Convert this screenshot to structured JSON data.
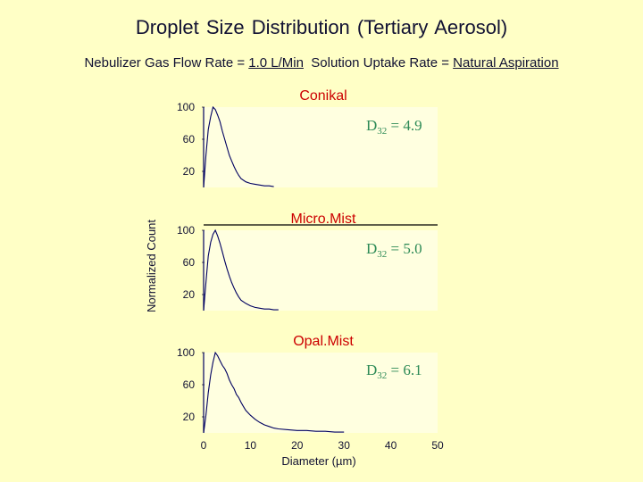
{
  "title": "Droplet  Size Distribution (Tertiary Aerosol)",
  "subtitle": {
    "flow_label": "Nebulizer Gas Flow Rate = ",
    "flow_value": "1.0 L/Min",
    "uptake_label": "  Solution Uptake Rate = ",
    "uptake_value": "Natural Aspiration"
  },
  "colors": {
    "background": "#FFFFC6",
    "plot_area": "#FFFFE0",
    "panel_title": "#CC0000",
    "d32_text": "#2E8B57",
    "curve": "#000060"
  },
  "chart_data": {
    "type": "line",
    "ylabel": "Normalized Count",
    "xlabel": "Diameter (µm)",
    "xlim": [
      0,
      50
    ],
    "ylim": [
      0,
      100
    ],
    "x_ticks": [
      "0",
      "10",
      "20",
      "30",
      "40",
      "50"
    ],
    "y_ticks": [
      "100",
      "60",
      "20"
    ],
    "grid": false,
    "panels": [
      {
        "title": "Conikal",
        "d32_label": "D",
        "d32_sub": "32",
        "d32_value": " = 4.9",
        "series": [
          {
            "x": [
              0,
              0.5,
              1,
              1.5,
              2,
              2.5,
              3,
              3.5,
              4,
              4.5,
              5,
              5.5,
              6,
              6.5,
              7,
              7.5,
              8,
              9,
              10,
              11,
              12,
              13,
              14,
              15
            ],
            "y": [
              0,
              40,
              72,
              88,
              100,
              97,
              90,
              82,
              70,
              60,
              50,
              40,
              33,
              26,
              20,
              15,
              11,
              7,
              5,
              4,
              3,
              2,
              2,
              1
            ]
          }
        ]
      },
      {
        "title": "Micro.Mist",
        "d32_label": "D",
        "d32_sub": "32",
        "d32_value": " = 5.0",
        "series": [
          {
            "x": [
              0,
              0.5,
              1,
              1.5,
              2,
              2.5,
              3,
              3.5,
              4,
              4.5,
              5,
              5.5,
              6,
              6.5,
              7,
              7.5,
              8,
              9,
              10,
              11,
              12,
              13,
              14,
              15,
              16
            ],
            "y": [
              0,
              35,
              68,
              85,
              95,
              100,
              93,
              84,
              73,
              62,
              52,
              43,
              35,
              28,
              22,
              17,
              13,
              9,
              6,
              4,
              3,
              2,
              2,
              1,
              1
            ]
          }
        ]
      },
      {
        "title": "Opal.Mist",
        "d32_label": "D",
        "d32_sub": "32",
        "d32_value": " = 6.1",
        "series": [
          {
            "x": [
              0,
              0.5,
              1,
              1.5,
              2,
              2.5,
              3,
              3.5,
              4,
              4.5,
              5,
              5.5,
              6,
              6.5,
              7,
              7.5,
              8,
              8.5,
              9,
              10,
              11,
              12,
              13,
              14,
              15,
              16,
              18,
              20,
              22,
              24,
              26,
              28,
              30
            ],
            "y": [
              0,
              22,
              50,
              72,
              88,
              100,
              96,
              90,
              84,
              80,
              74,
              66,
              60,
              55,
              48,
              44,
              38,
              33,
              28,
              22,
              17,
              13,
              10,
              8,
              6,
              5,
              4,
              3,
              3,
              2,
              2,
              1,
              1
            ]
          }
        ]
      }
    ]
  }
}
